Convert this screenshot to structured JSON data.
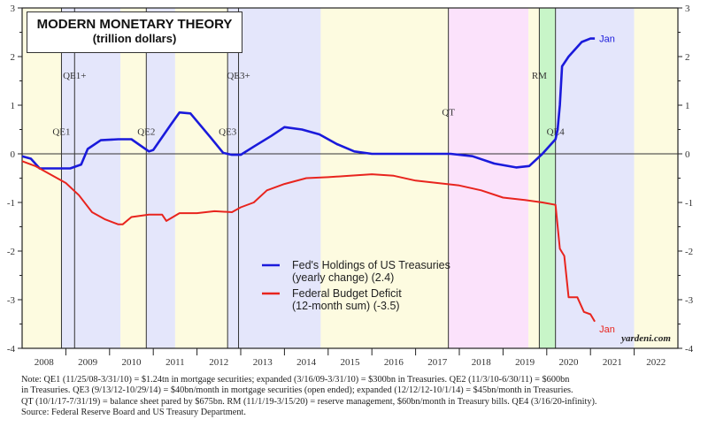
{
  "chart_data": {
    "type": "line",
    "title": "MODERN MONETARY THEORY",
    "subtitle": "(trillion dollars)",
    "xlim": [
      2008,
      2023
    ],
    "ylim": [
      -4,
      3
    ],
    "yticks": [
      -4,
      -3,
      -2,
      -1,
      0,
      1,
      2,
      3
    ],
    "xtick_labels": [
      "2008",
      "2009",
      "2010",
      "2011",
      "2012",
      "2013",
      "2014",
      "2015",
      "2016",
      "2017",
      "2018",
      "2019",
      "2020",
      "2021",
      "2022"
    ],
    "legend_placement": "lower-center",
    "watermark": "yardeni.com",
    "bands": [
      {
        "from": 2008.0,
        "to": 2008.9,
        "color": "#fdfbe0"
      },
      {
        "from": 2008.9,
        "to": 2010.25,
        "color": "#e4e6fb"
      },
      {
        "from": 2010.25,
        "to": 2010.84,
        "color": "#fdfbe0"
      },
      {
        "from": 2010.84,
        "to": 2011.5,
        "color": "#e4e6fb"
      },
      {
        "from": 2011.5,
        "to": 2012.7,
        "color": "#fdfbe0"
      },
      {
        "from": 2012.7,
        "to": 2014.83,
        "color": "#e4e6fb"
      },
      {
        "from": 2014.83,
        "to": 2017.75,
        "color": "#fdfbe0"
      },
      {
        "from": 2017.75,
        "to": 2019.58,
        "color": "#fbe2fb"
      },
      {
        "from": 2019.58,
        "to": 2019.83,
        "color": "#fdfbe0"
      },
      {
        "from": 2019.83,
        "to": 2020.2,
        "color": "#c8f5c8"
      },
      {
        "from": 2020.2,
        "to": 2022.0,
        "color": "#e4e6fb"
      },
      {
        "from": 2022.0,
        "to": 2023.0,
        "color": "#fdfbe0"
      }
    ],
    "events": [
      {
        "label": "QE1",
        "x": 2008.9,
        "label_y": 0.45
      },
      {
        "label": "QE1+",
        "x": 2009.2,
        "label_y": 1.6
      },
      {
        "label": "QE2",
        "x": 2010.84,
        "label_y": 0.45
      },
      {
        "label": "QE3",
        "x": 2012.7,
        "label_y": 0.45
      },
      {
        "label": "QE3+",
        "x": 2012.95,
        "label_y": 1.6
      },
      {
        "label": "QT",
        "x": 2017.75,
        "label_y": 0.85
      },
      {
        "label": "RM",
        "x": 2019.83,
        "label_y": 1.6
      },
      {
        "label": "QE4",
        "x": 2020.2,
        "label_y": 0.45
      }
    ],
    "series": [
      {
        "name": "Fed's Holdings of US Treasuries",
        "name2": "(yearly change) (2.4)",
        "end_label": "Jan",
        "color": "#1a1adb",
        "x": [
          2008.0,
          2008.2,
          2008.4,
          2008.9,
          2009.1,
          2009.35,
          2009.5,
          2009.8,
          2010.2,
          2010.5,
          2010.9,
          2011.0,
          2011.4,
          2011.6,
          2011.85,
          2012.3,
          2012.6,
          2012.8,
          2013.0,
          2013.3,
          2013.7,
          2014.0,
          2014.4,
          2014.8,
          2015.2,
          2015.6,
          2016.0,
          2017.8,
          2018.3,
          2018.8,
          2019.3,
          2019.6,
          2019.9,
          2020.2,
          2020.25,
          2020.3,
          2020.35,
          2020.5,
          2020.8,
          2021.0,
          2021.1
        ],
        "y": [
          -0.05,
          -0.1,
          -0.3,
          -0.3,
          -0.3,
          -0.22,
          0.1,
          0.28,
          0.3,
          0.3,
          0.05,
          0.08,
          0.6,
          0.85,
          0.83,
          0.35,
          0.02,
          -0.02,
          -0.02,
          0.15,
          0.37,
          0.55,
          0.5,
          0.4,
          0.2,
          0.05,
          0.0,
          0.0,
          -0.05,
          -0.2,
          -0.28,
          -0.25,
          0.0,
          0.3,
          0.5,
          1.0,
          1.8,
          2.0,
          2.3,
          2.37,
          2.37
        ]
      },
      {
        "name": "Federal Budget Deficit",
        "name2": "(12-month sum) (-3.5)",
        "end_label": "Jan",
        "color": "#e8241e",
        "x": [
          2008.0,
          2008.3,
          2008.6,
          2009.0,
          2009.3,
          2009.6,
          2009.9,
          2010.2,
          2010.3,
          2010.5,
          2010.9,
          2011.2,
          2011.3,
          2011.6,
          2012.0,
          2012.4,
          2012.8,
          2013.0,
          2013.3,
          2013.6,
          2014.0,
          2014.5,
          2015.0,
          2015.5,
          2016.0,
          2016.5,
          2017.0,
          2017.5,
          2018.0,
          2018.5,
          2019.0,
          2019.5,
          2019.9,
          2020.2,
          2020.3,
          2020.4,
          2020.5,
          2020.7,
          2020.85,
          2021.0,
          2021.1
        ],
        "y": [
          -0.15,
          -0.25,
          -0.4,
          -0.6,
          -0.85,
          -1.2,
          -1.35,
          -1.45,
          -1.45,
          -1.3,
          -1.25,
          -1.25,
          -1.38,
          -1.22,
          -1.22,
          -1.18,
          -1.2,
          -1.1,
          -1.0,
          -0.75,
          -0.62,
          -0.5,
          -0.48,
          -0.45,
          -0.42,
          -0.45,
          -0.55,
          -0.6,
          -0.65,
          -0.75,
          -0.9,
          -0.95,
          -1.0,
          -1.05,
          -1.95,
          -2.1,
          -2.95,
          -2.95,
          -3.25,
          -3.3,
          -3.45
        ]
      }
    ]
  },
  "notes": [
    "Note: QE1 (11/25/08-3/31/10) = $1.24tn in mortgage securities; expanded (3/16/09-3/31/10) = $300bn in Treasuries. QE2 (11/3/10-6/30/11) = $600bn",
    "in Treasuries. QE3 (9/13/12-10/29/14) = $40bn/month in mortgage securities (open ended); expanded (12/12/12-10/1/14) = $45bn/month in Treasuries.",
    "QT (10/1/17-7/31/19) = balance sheet pared by $675bn. RM (11/1/19-3/15/20) = reserve management, $60bn/month in Treasury bills. QE4 (3/16/20-infinity).",
    "Source: Federal Reserve Board and US Treasury Department."
  ]
}
